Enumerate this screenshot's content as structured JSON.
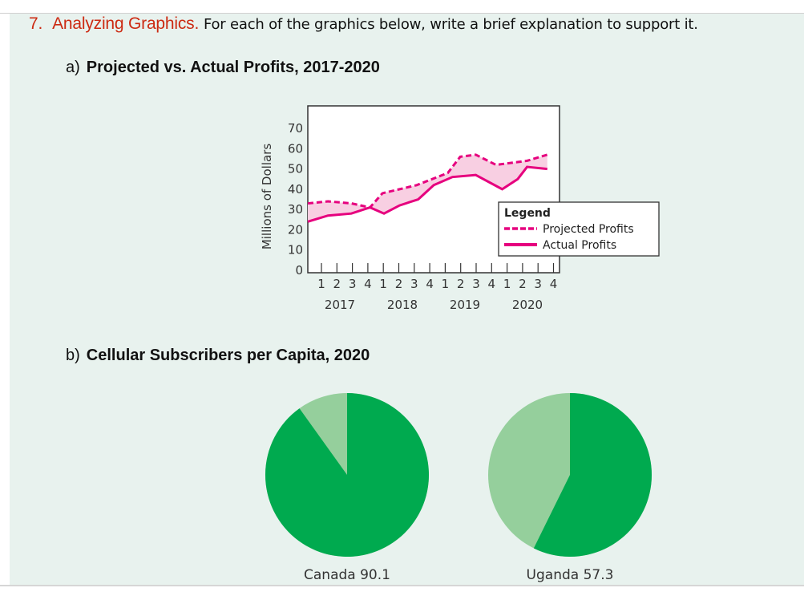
{
  "question": {
    "number": "7.",
    "keyword": "Analyzing Graphics.",
    "prompt": "For each of the graphics below, write a brief explanation to support it."
  },
  "part_a": {
    "letter": "a)",
    "title": "Projected vs. Actual Profits, 2017-2020"
  },
  "part_b": {
    "letter": "b)",
    "title": "Cellular Subscribers per Capita, 2020"
  },
  "colors": {
    "accent_red": "#cc2a12",
    "panel_bg": "#e8f2ee",
    "profit_pink": "#e6007e",
    "gap_fill": "#f8cfe2",
    "pie_dark": "#00aa4f",
    "pie_light": "#95cf9c"
  },
  "chart_data": [
    {
      "type": "line",
      "title": "Projected vs. Actual Profits, 2017-2020",
      "xlabel": "",
      "ylabel": "Millions of Dollars",
      "ylim": [
        0,
        70
      ],
      "yticks": [
        "0",
        "10",
        "20",
        "30",
        "40",
        "50",
        "60",
        "70"
      ],
      "quarter_ticks": [
        "1",
        "2",
        "3",
        "4",
        "1",
        "2",
        "3",
        "4",
        "1",
        "2",
        "3",
        "4",
        "1",
        "2",
        "3",
        "4"
      ],
      "year_labels": [
        "2017",
        "2018",
        "2019",
        "2020"
      ],
      "x": [
        0,
        0.5,
        1.5,
        2.7,
        3.4,
        4.3,
        5.5,
        6.2,
        7.4,
        8.9,
        10.5,
        11.6,
        12.1,
        13.4
      ],
      "legend": {
        "title": "Legend",
        "entries": [
          "Projected Profits",
          "Actual Profits"
        ]
      },
      "series": [
        {
          "name": "Projected Profits",
          "style": "dashed",
          "points": [
            [
              0,
              33
            ],
            [
              1.3,
              34
            ],
            [
              2.8,
              33
            ],
            [
              4.0,
              31
            ],
            [
              4.8,
              38
            ],
            [
              7.0,
              42
            ],
            [
              9.0,
              48
            ],
            [
              9.8,
              56
            ],
            [
              10.8,
              57
            ],
            [
              12.1,
              52
            ],
            [
              14.1,
              54
            ],
            [
              15.4,
              57
            ]
          ]
        },
        {
          "name": "Actual Profits",
          "style": "solid",
          "points": [
            [
              0,
              24
            ],
            [
              1.3,
              27
            ],
            [
              2.8,
              28
            ],
            [
              4.0,
              31
            ],
            [
              4.9,
              28
            ],
            [
              5.9,
              32
            ],
            [
              7.1,
              35
            ],
            [
              8.1,
              42
            ],
            [
              9.3,
              46
            ],
            [
              10.8,
              47
            ],
            [
              12.5,
              40
            ],
            [
              13.5,
              45
            ],
            [
              14.1,
              51
            ],
            [
              15.4,
              50
            ]
          ]
        }
      ],
      "grid": false,
      "legend_position": "lower right, overlapping plot edge"
    },
    {
      "type": "pie",
      "title": "Cellular Subscribers per Capita, 2020",
      "charts": [
        {
          "label": "Canada 90.1",
          "country": "Canada",
          "value": 90.1,
          "slices": [
            90.1,
            9.9
          ]
        },
        {
          "label": "Uganda 57.3",
          "country": "Uganda",
          "value": 57.3,
          "slices": [
            57.3,
            42.7
          ]
        }
      ]
    }
  ]
}
